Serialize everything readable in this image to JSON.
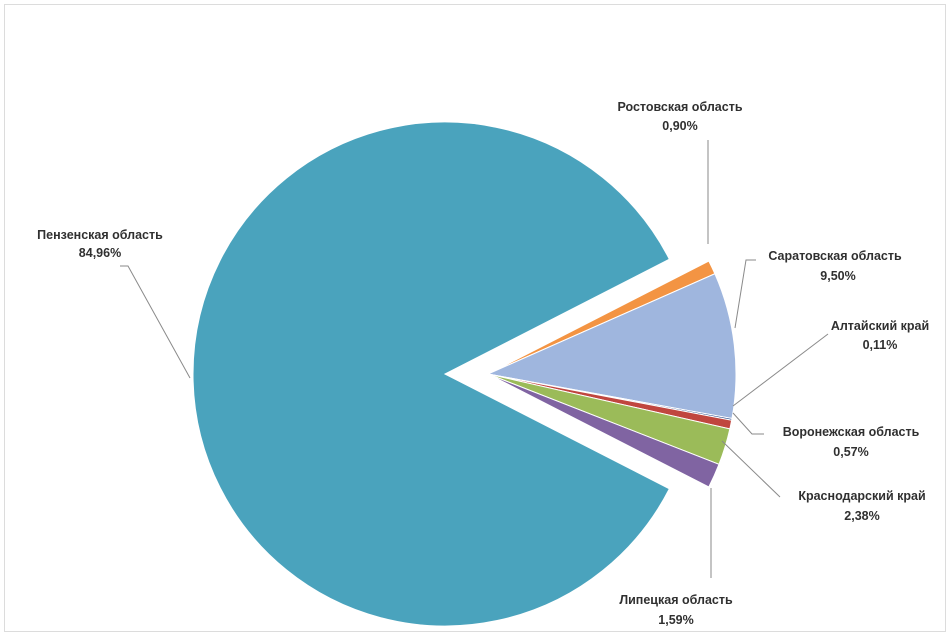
{
  "chart_data": {
    "type": "pie",
    "slices": [
      {
        "name": "Пензенская область",
        "label": "84,96%",
        "value": 84.96,
        "color": "#4aa3bd"
      },
      {
        "name": "Ростовская область",
        "label": "0,90%",
        "value": 0.9,
        "color": "#f39443"
      },
      {
        "name": "Саратовская область",
        "label": "9,50%",
        "value": 9.5,
        "color": "#9fb6de"
      },
      {
        "name": "Алтайский край",
        "label": "0,11%",
        "value": 0.11,
        "color": "#2f4f8f"
      },
      {
        "name": "Воронежская область",
        "label": "0,57%",
        "value": 0.57,
        "color": "#c0463f"
      },
      {
        "name": "Краснодарский край",
        "label": "2,38%",
        "value": 2.38,
        "color": "#9bbb59"
      },
      {
        "name": "Липецкая область",
        "label": "1,59%",
        "value": 1.59,
        "color": "#8064a2"
      }
    ]
  }
}
